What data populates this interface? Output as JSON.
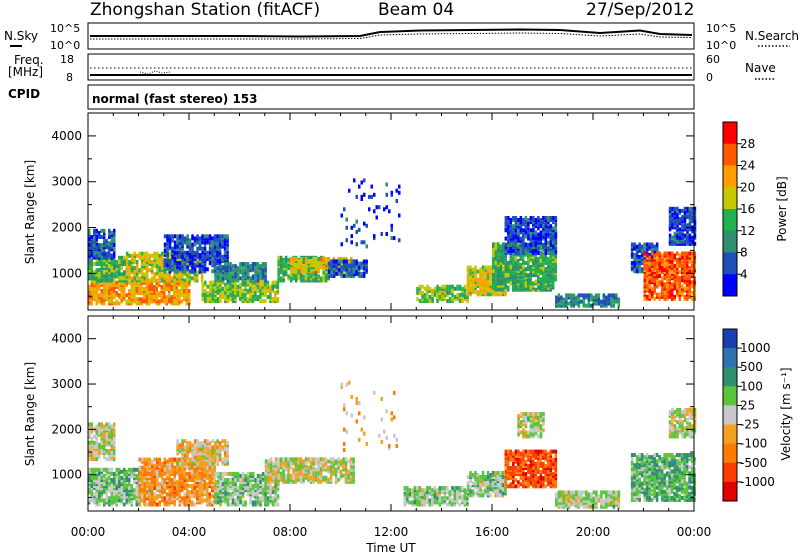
{
  "header": {
    "station": "Zhongshan Station (fitACF)",
    "beam": "Beam 04",
    "date": "27/Sep/2012"
  },
  "noise_panel": {
    "left_label": "N.Sky",
    "right_label": "N.Search",
    "left_ticks": [
      "10^5",
      "10^0"
    ],
    "right_ticks": [
      "10^5",
      "10^0"
    ]
  },
  "freq_panel": {
    "left_label_1": "Freq.",
    "left_label_2": "[MHz]",
    "right_label": "Nave",
    "left_ticks": [
      "18",
      "8"
    ],
    "right_ticks": [
      "60",
      "0"
    ]
  },
  "cpid_panel": {
    "label": "CPID",
    "mode": "normal (fast stereo) 153"
  },
  "power_colorbar": {
    "title": "Power [dB]",
    "ticks": [
      "28",
      "24",
      "20",
      "16",
      "12",
      "8",
      "4"
    ],
    "colors": [
      "#0000ff",
      "#1e4fb8",
      "#2f8f70",
      "#22b14c",
      "#c8c800",
      "#ff9d00",
      "#ff5a00",
      "#ff0000"
    ]
  },
  "velocity_colorbar": {
    "title": "Velocity [m s⁻¹]",
    "ticks": [
      "1000",
      "500",
      "100",
      "25",
      "-25",
      "-100",
      "-500",
      "-1000"
    ],
    "colors": [
      "#1b3fb0",
      "#2d73b0",
      "#2f8f70",
      "#59c43c",
      "#c8c8c8",
      "#f2a020",
      "#ff7a00",
      "#ff3c00",
      "#e00000"
    ]
  },
  "chart_data": {
    "type": "heatmap",
    "xlabel": "Time UT",
    "x_ticks": [
      "00:00",
      "04:00",
      "08:00",
      "12:00",
      "16:00",
      "20:00",
      "00:00"
    ],
    "xlim_hours": [
      0,
      24
    ],
    "ylabel": "Slant Range [km]",
    "y_ticks": [
      1000,
      2000,
      3000,
      4000
    ],
    "ylim": [
      200,
      4500
    ],
    "panels": [
      {
        "name": "Power",
        "unit": "dB",
        "cmap_range": [
          0,
          32
        ],
        "regions": [
          {
            "t0": 0.0,
            "t1": 4.0,
            "r0": 300,
            "r1": 800,
            "val": 22
          },
          {
            "t0": 0.0,
            "t1": 1.5,
            "r0": 800,
            "r1": 1300,
            "val": 14
          },
          {
            "t0": 1.5,
            "t1": 4.5,
            "r0": 800,
            "r1": 1400,
            "val": 18
          },
          {
            "t0": 0.0,
            "t1": 1.0,
            "r0": 1300,
            "r1": 1900,
            "val": 6
          },
          {
            "t0": 3.0,
            "t1": 5.5,
            "r0": 1000,
            "r1": 1800,
            "val": 5
          },
          {
            "t0": 4.5,
            "t1": 7.5,
            "r0": 350,
            "r1": 800,
            "val": 16
          },
          {
            "t0": 5.0,
            "t1": 7.0,
            "r0": 800,
            "r1": 1200,
            "val": 10
          },
          {
            "t0": 7.5,
            "t1": 9.5,
            "r0": 800,
            "r1": 1300,
            "val": 13
          },
          {
            "t0": 8.0,
            "t1": 10.5,
            "r0": 1000,
            "r1": 1300,
            "val": 20
          },
          {
            "t0": 9.5,
            "t1": 11.0,
            "r0": 900,
            "r1": 1250,
            "val": 6
          },
          {
            "t0": 10.0,
            "t1": 12.5,
            "r0": 1500,
            "r1": 3000,
            "val": 4,
            "density": 0.05
          },
          {
            "t0": 13.0,
            "t1": 15.0,
            "r0": 350,
            "r1": 700,
            "val": 16
          },
          {
            "t0": 15.0,
            "t1": 16.5,
            "r0": 500,
            "r1": 1100,
            "val": 19
          },
          {
            "t0": 16.0,
            "t1": 18.5,
            "r0": 600,
            "r1": 1600,
            "val": 13
          },
          {
            "t0": 16.5,
            "t1": 18.5,
            "r0": 1400,
            "r1": 2200,
            "val": 5
          },
          {
            "t0": 18.5,
            "t1": 21.0,
            "r0": 250,
            "r1": 500,
            "val": 9
          },
          {
            "t0": 21.5,
            "t1": 22.5,
            "r0": 1000,
            "r1": 1600,
            "val": 6
          },
          {
            "t0": 22.0,
            "t1": 24.0,
            "r0": 400,
            "r1": 1400,
            "val": 26
          },
          {
            "t0": 23.0,
            "t1": 24.0,
            "r0": 1600,
            "r1": 2400,
            "val": 5
          }
        ]
      },
      {
        "name": "Velocity",
        "unit": "m s-1",
        "cmap_range": [
          -1000,
          1000
        ],
        "regions": [
          {
            "t0": 0.0,
            "t1": 2.5,
            "r0": 300,
            "r1": 1100,
            "val": 200
          },
          {
            "t0": 0.0,
            "t1": 1.0,
            "r0": 1300,
            "r1": 2100,
            "val": 0
          },
          {
            "t0": 2.0,
            "t1": 5.0,
            "r0": 300,
            "r1": 1300,
            "val": -300
          },
          {
            "t0": 3.5,
            "t1": 5.5,
            "r0": 1200,
            "r1": 1700,
            "val": -120
          },
          {
            "t0": 5.0,
            "t1": 7.5,
            "r0": 300,
            "r1": 1000,
            "val": 150
          },
          {
            "t0": 7.0,
            "t1": 10.5,
            "r0": 800,
            "r1": 1300,
            "val": 0
          },
          {
            "t0": 10.0,
            "t1": 12.5,
            "r0": 1500,
            "r1": 3000,
            "val": -200,
            "density": 0.05
          },
          {
            "t0": 12.5,
            "t1": 15.0,
            "r0": 300,
            "r1": 700,
            "val": 150
          },
          {
            "t0": 15.0,
            "t1": 16.5,
            "r0": 500,
            "r1": 1000,
            "val": 120
          },
          {
            "t0": 16.5,
            "t1": 18.5,
            "r0": 700,
            "r1": 1500,
            "val": -600
          },
          {
            "t0": 17.0,
            "t1": 18.0,
            "r0": 1800,
            "r1": 2300,
            "val": 60
          },
          {
            "t0": 18.5,
            "t1": 21.0,
            "r0": 250,
            "r1": 600,
            "val": 60
          },
          {
            "t0": 21.5,
            "t1": 24.0,
            "r0": 400,
            "r1": 1400,
            "val": 300
          },
          {
            "t0": 23.0,
            "t1": 24.0,
            "r0": 1800,
            "r1": 2400,
            "val": 0
          }
        ]
      }
    ]
  }
}
